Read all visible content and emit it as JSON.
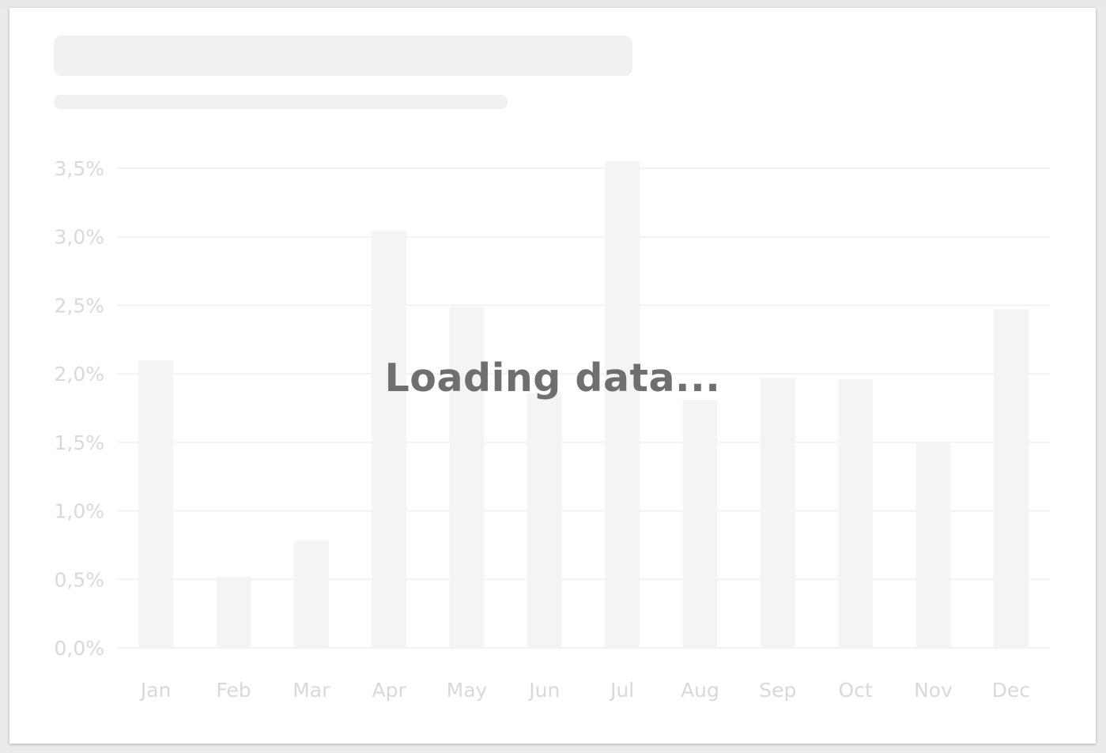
{
  "status": {
    "message": "Loading data..."
  },
  "colors": {
    "bar": "#f4f4f4",
    "grid": "#f2f2f2",
    "tick_text": "#d9d9d9",
    "loading_text": "#6f6f6f"
  },
  "chart_data": {
    "type": "bar",
    "title": "",
    "xlabel": "",
    "ylabel": "",
    "categories": [
      "Jan",
      "Feb",
      "Mar",
      "Apr",
      "May",
      "Jun",
      "Jul",
      "Aug",
      "Sep",
      "Oct",
      "Nov",
      "Dec"
    ],
    "values": [
      2.1,
      0.52,
      0.78,
      3.04,
      2.49,
      1.86,
      3.55,
      1.81,
      1.97,
      1.96,
      1.49,
      2.47
    ],
    "ylim": [
      0,
      3.5
    ],
    "y_ticks": [
      "0,0%",
      "0,5%",
      "1,0%",
      "1,5%",
      "2,0%",
      "2,5%",
      "3,0%",
      "3,5%"
    ],
    "grid": true,
    "legend": "none"
  }
}
